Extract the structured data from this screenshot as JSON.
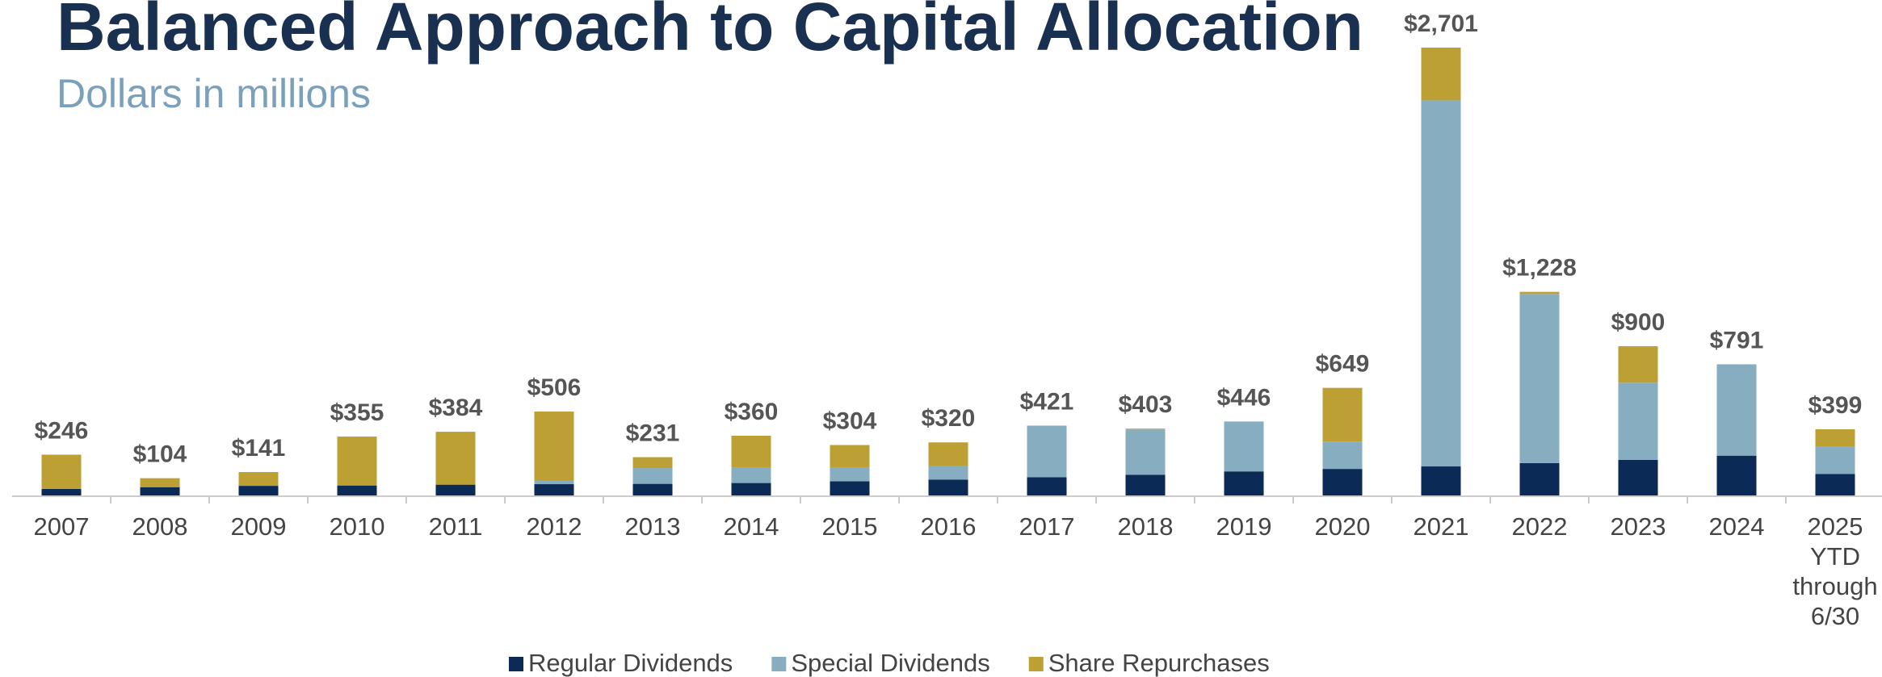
{
  "chart_data": {
    "type": "stacked_bar",
    "title": "Balanced Approach to Capital Allocation",
    "subtitle": "Dollars in millions",
    "categories": [
      "2007",
      "2008",
      "2009",
      "2010",
      "2011",
      "2012",
      "2013",
      "2014",
      "2015",
      "2016",
      "2017",
      "2018",
      "2019",
      "2020",
      "2021",
      "2022",
      "2023",
      "2024",
      "2025\nYTD\nthrough\n6/30"
    ],
    "series": [
      {
        "name": "Regular Dividends",
        "color": "#0b2a55",
        "values": [
          40,
          50,
          58,
          60,
          65,
          68,
          70,
          75,
          85,
          95,
          110,
          125,
          145,
          160,
          175,
          195,
          215,
          240,
          130
        ]
      },
      {
        "name": "Special Dividends",
        "color": "#86adc0",
        "values": [
          0,
          0,
          0,
          0,
          0,
          20,
          95,
          95,
          85,
          85,
          311,
          273,
          301,
          165,
          2208,
          1020,
          465,
          551,
          165
        ]
      },
      {
        "name": "Share Repurchases",
        "color": "#bda033",
        "values": [
          206,
          54,
          83,
          295,
          319,
          418,
          66,
          190,
          134,
          140,
          0,
          5,
          0,
          324,
          318,
          13,
          220,
          0,
          104
        ]
      }
    ],
    "totals": [
      246,
      104,
      141,
      355,
      384,
      506,
      231,
      360,
      304,
      320,
      421,
      403,
      446,
      649,
      2701,
      1228,
      900,
      791,
      399
    ],
    "total_labels": [
      "$246",
      "$104",
      "$141",
      "$355",
      "$384",
      "$506",
      "$231",
      "$360",
      "$304",
      "$320",
      "$421",
      "$403",
      "$446",
      "$649",
      "$2,701",
      "$1,228",
      "$900",
      "$791",
      "$399"
    ],
    "legend": "bottom"
  }
}
